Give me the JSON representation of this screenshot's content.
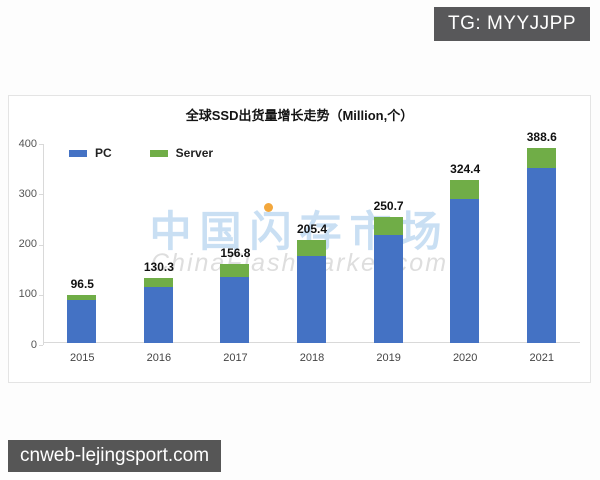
{
  "overlays": {
    "tg_badge": "TG: MYYJJPP",
    "site_badge": "cnweb-lejingsport.com",
    "badge_bg": "#58585a",
    "badge_text_color": "#ffffff"
  },
  "watermark": {
    "line1": "中国闪存市场",
    "line2": "ChinaFlashMarket.com",
    "line1_color": "#c9dff3",
    "line2_color": "#dedede",
    "dot_color": "#f3a73c"
  },
  "chart_data": {
    "type": "bar",
    "stacked": true,
    "title": "全球SSD出货量增长走势（Million,个）",
    "categories": [
      "2015",
      "2016",
      "2017",
      "2018",
      "2019",
      "2020",
      "2021"
    ],
    "series": [
      {
        "name": "PC",
        "color": "#4472C4",
        "values": [
          85.5,
          112.3,
          131.8,
          172.4,
          215.7,
          286.4,
          348.6
        ]
      },
      {
        "name": "Server",
        "color": "#70AD47",
        "values": [
          11.0,
          18.0,
          25.0,
          33.0,
          35.0,
          38.0,
          40.0
        ]
      }
    ],
    "totals": [
      96.5,
      130.3,
      156.8,
      205.4,
      250.7,
      324.4,
      388.6
    ],
    "total_labels": [
      "96.5",
      "130.3",
      "156.8",
      "205.4",
      "250.7",
      "324.4",
      "388.6"
    ],
    "yticks": [
      0,
      100,
      200,
      300,
      400
    ],
    "ytick_labels": [
      "0",
      "100",
      "200",
      "300",
      "400"
    ],
    "ylim": [
      0,
      400
    ],
    "xlabel": "",
    "ylabel": "",
    "grid": false,
    "legend_position": "top-left"
  }
}
